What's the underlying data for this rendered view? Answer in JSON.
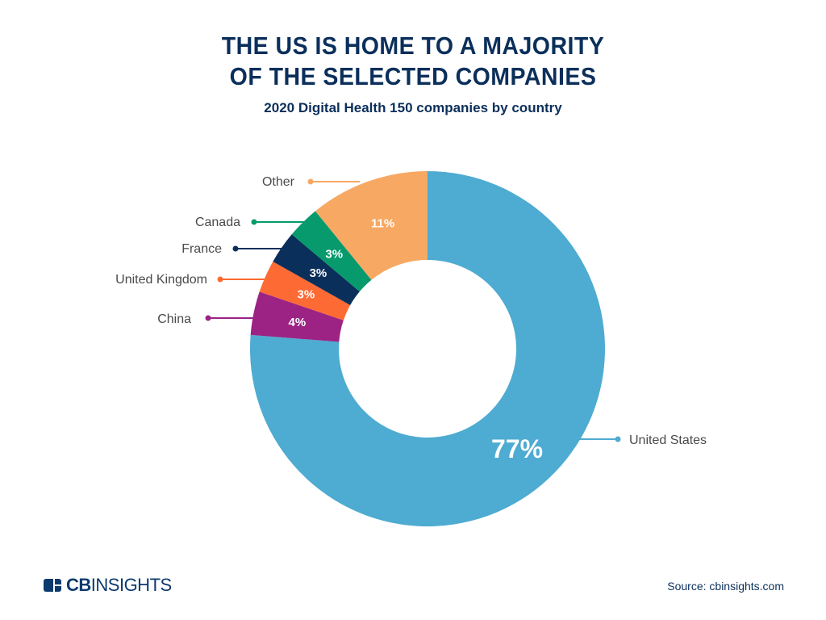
{
  "chart_data": {
    "type": "pie",
    "variant": "donut",
    "title": "THE US IS HOME TO A MAJORITY OF THE SELECTED COMPANIES",
    "title_lines": [
      "THE US IS HOME TO A MAJORITY",
      "OF THE SELECTED COMPANIES"
    ],
    "subtitle": "2020 Digital Health 150 companies by country",
    "unit": "%",
    "slices": [
      {
        "name": "United States",
        "value": 77,
        "label": "77%",
        "color": "#4eabd1"
      },
      {
        "name": "China",
        "value": 4,
        "label": "4%",
        "color": "#9c2384"
      },
      {
        "name": "United Kingdom",
        "value": 3,
        "label": "3%",
        "color": "#fd6a33"
      },
      {
        "name": "France",
        "value": 3,
        "label": "3%",
        "color": "#0b2f5b"
      },
      {
        "name": "Canada",
        "value": 3,
        "label": "3%",
        "color": "#079a6c"
      },
      {
        "name": "Other",
        "value": 11,
        "label": "11%",
        "color": "#f7a863"
      }
    ]
  },
  "footer": {
    "logo": "CBINSIGHTS",
    "logo_bold": "CB",
    "logo_rest": "INSIGHTS",
    "source": "Source: cbinsights.com"
  }
}
